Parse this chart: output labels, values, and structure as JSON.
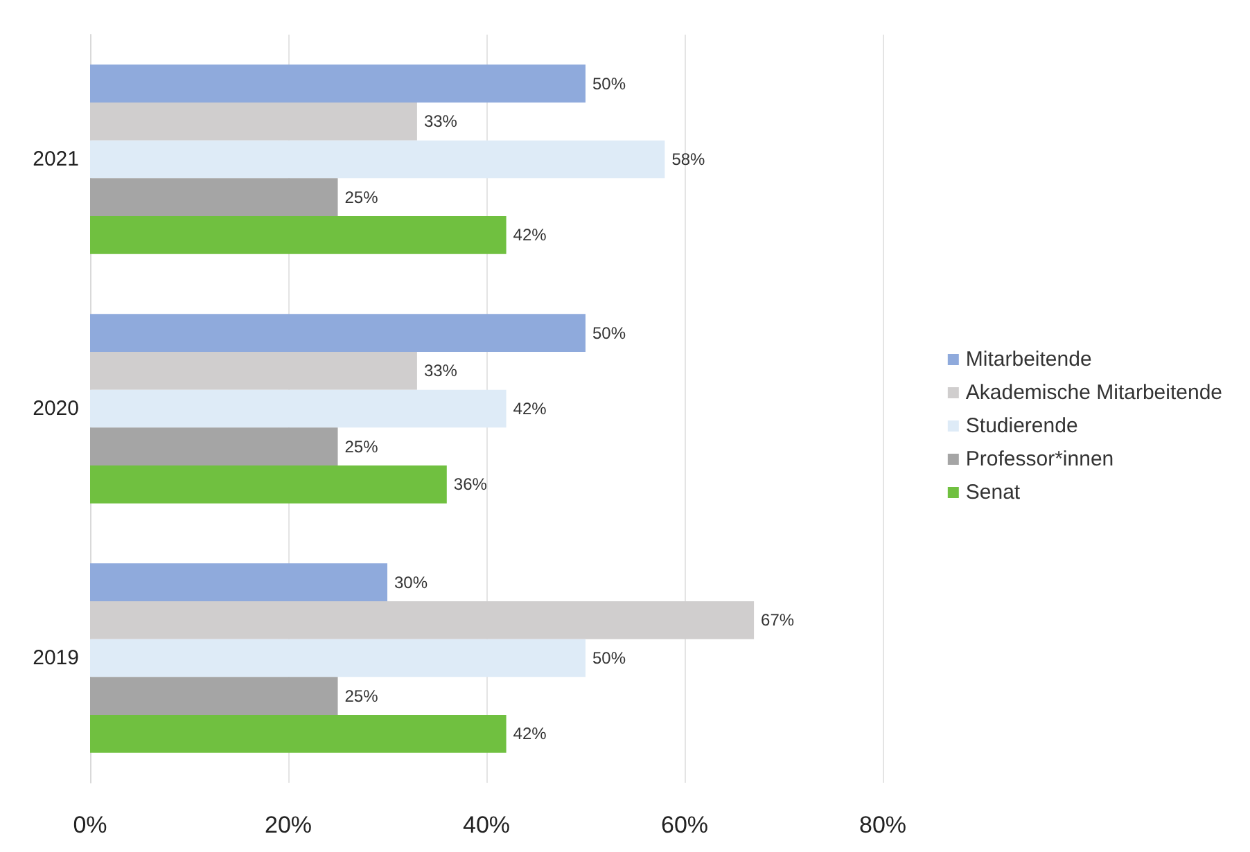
{
  "chart_data": {
    "type": "bar",
    "orientation": "horizontal",
    "categories": [
      "2021",
      "2020",
      "2019"
    ],
    "series": [
      {
        "name": "Mitarbeitende",
        "color": "#8faadc",
        "values": [
          50,
          50,
          30
        ],
        "value_labels": [
          "50%",
          "50%",
          "30%"
        ]
      },
      {
        "name": "Akademische Mitarbeitende",
        "color": "#d0cece",
        "values": [
          33,
          33,
          67
        ],
        "value_labels": [
          "33%",
          "33%",
          "67%"
        ]
      },
      {
        "name": "Studierende",
        "color": "#deebf7",
        "values": [
          58,
          42,
          50
        ],
        "value_labels": [
          "58%",
          "42%",
          "50%"
        ]
      },
      {
        "name": "Professor*innen",
        "color": "#a5a5a5",
        "values": [
          25,
          25,
          25
        ],
        "value_labels": [
          "25%",
          "25%",
          "25%"
        ]
      },
      {
        "name": "Senat",
        "color": "#70c040",
        "values": [
          42,
          36,
          42
        ],
        "value_labels": [
          "42%",
          "36%",
          "42%"
        ]
      }
    ],
    "xlim": [
      0,
      80
    ],
    "xticks": [
      {
        "value": 0,
        "label": "0%"
      },
      {
        "value": 20,
        "label": "20%"
      },
      {
        "value": 40,
        "label": "40%"
      },
      {
        "value": 60,
        "label": "60%"
      },
      {
        "value": 80,
        "label": "80%"
      }
    ],
    "grid": "x",
    "legend": "right"
  }
}
